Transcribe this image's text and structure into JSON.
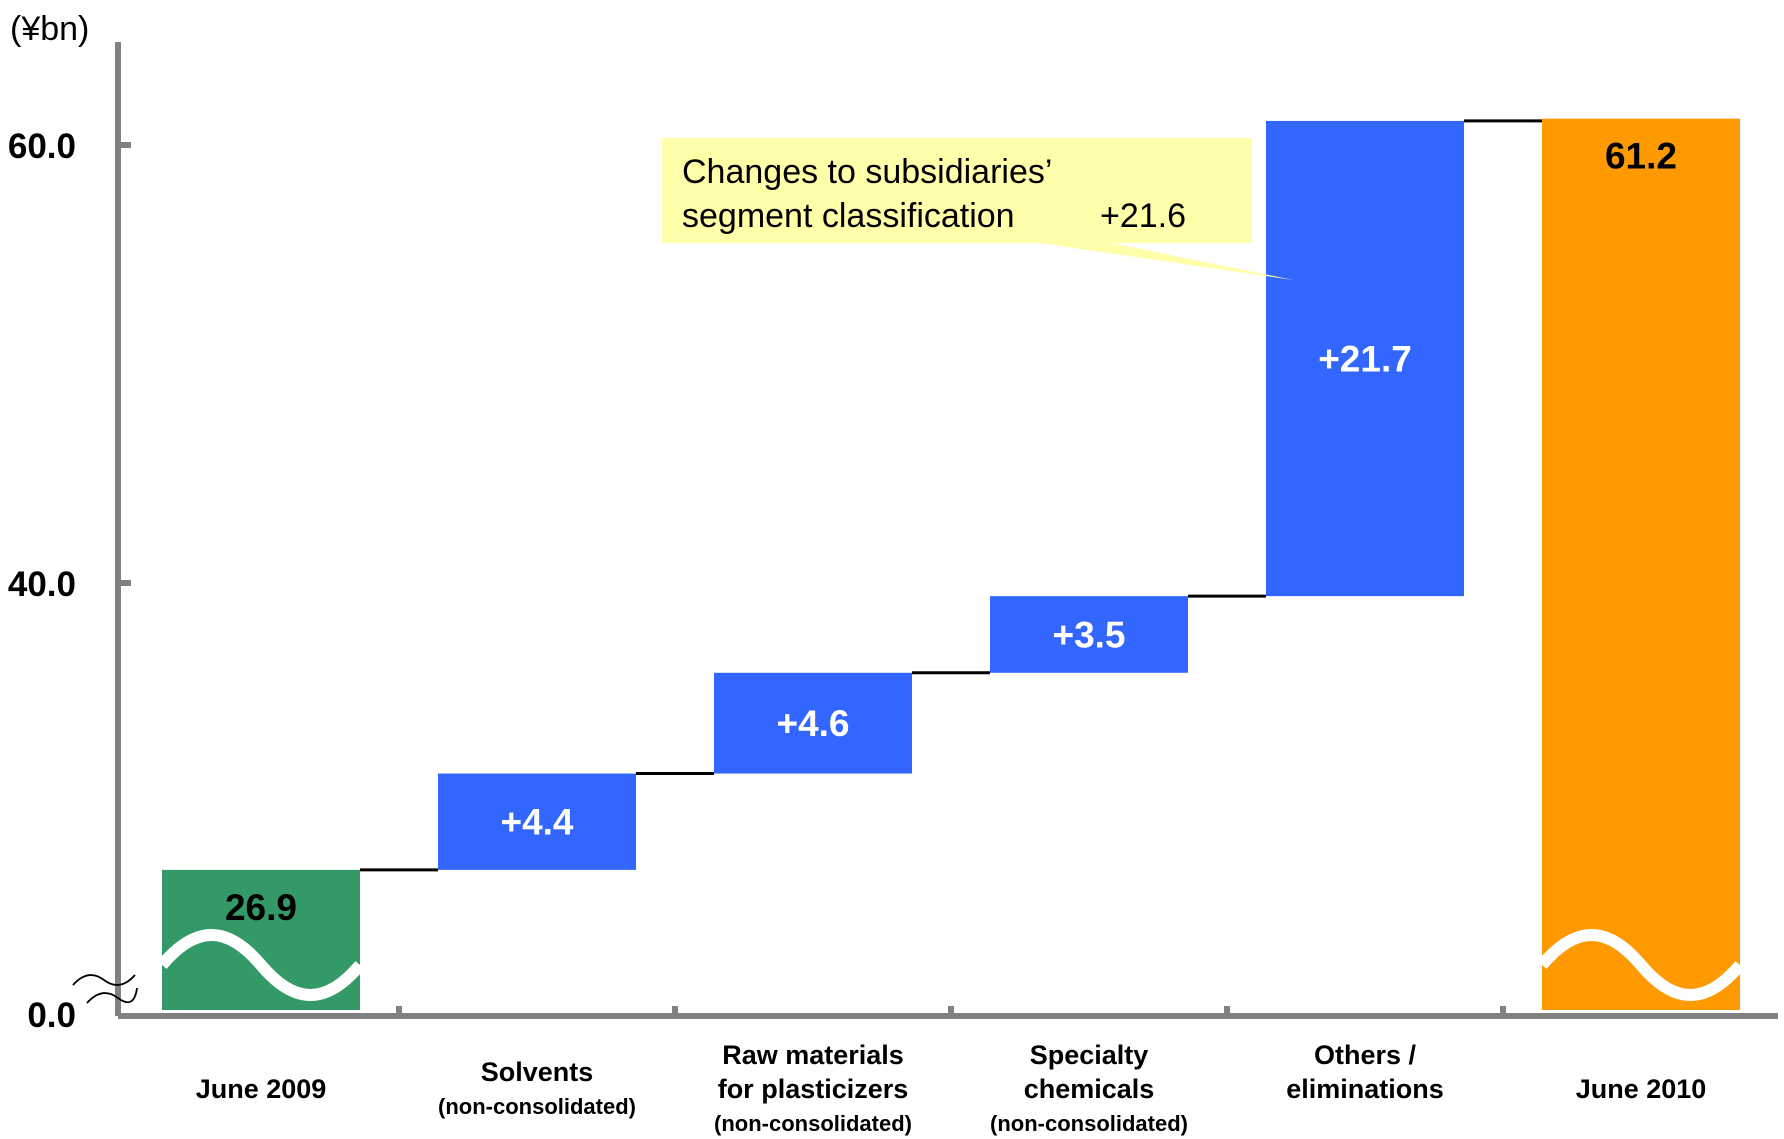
{
  "chart_data": {
    "type": "bar",
    "subtype": "waterfall",
    "unit_label": "(¥bn)",
    "yticks": [
      "0.0",
      "40.0",
      "60.0"
    ],
    "y_axis_break": true,
    "categories": [
      {
        "label": [
          "June 2009"
        ],
        "sub": "",
        "kind": "total",
        "value": 26.9,
        "display": "26.9",
        "color": "#339966",
        "label_color": "#000000"
      },
      {
        "label": [
          "Solvents"
        ],
        "sub": "(non-consolidated)",
        "kind": "delta",
        "value": 4.4,
        "display": "+4.4",
        "color": "#3366FF",
        "label_color": "#FFFFFF"
      },
      {
        "label": [
          "Raw materials",
          "for plasticizers"
        ],
        "sub": "(non-consolidated)",
        "kind": "delta",
        "value": 4.6,
        "display": "+4.6",
        "color": "#3366FF",
        "label_color": "#FFFFFF"
      },
      {
        "label": [
          "Specialty",
          "chemicals"
        ],
        "sub": "(non-consolidated)",
        "kind": "delta",
        "value": 3.5,
        "display": "+3.5",
        "color": "#3366FF",
        "label_color": "#FFFFFF"
      },
      {
        "label": [
          "Others /",
          "eliminations"
        ],
        "sub": "",
        "kind": "delta",
        "value": 21.7,
        "display": "+21.7",
        "color": "#3366FF",
        "label_color": "#FFFFFF"
      },
      {
        "label": [
          "June 2010"
        ],
        "sub": "",
        "kind": "total",
        "value": 61.2,
        "display": "61.2",
        "color": "#FF9900",
        "label_color": "#000000"
      }
    ],
    "annotation": {
      "lines": [
        "Changes to subsidiaries’",
        "segment classification"
      ],
      "value": "+21.6",
      "target": "Others / eliminations",
      "background": "#FFFFAA"
    },
    "colors": {
      "axis": "#808080",
      "connector": "#000000"
    }
  }
}
